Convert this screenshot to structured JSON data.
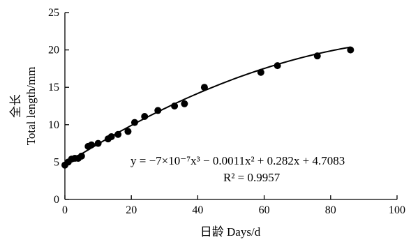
{
  "chart_data": {
    "type": "scatter",
    "xlabel": "日龄 Days/d",
    "ylabel_line1": "全长",
    "ylabel_line2": "Total length/mm",
    "xlim": [
      0,
      100
    ],
    "ylim": [
      0,
      25
    ],
    "x_ticks": [
      0,
      20,
      40,
      60,
      80,
      100
    ],
    "y_ticks": [
      0,
      5,
      10,
      15,
      20,
      25
    ],
    "grid": false,
    "points": [
      {
        "x": 0,
        "y": 4.6
      },
      {
        "x": 1,
        "y": 5.0
      },
      {
        "x": 2,
        "y": 5.4
      },
      {
        "x": 3,
        "y": 5.5
      },
      {
        "x": 4,
        "y": 5.5
      },
      {
        "x": 5,
        "y": 5.8
      },
      {
        "x": 7,
        "y": 7.1
      },
      {
        "x": 8,
        "y": 7.3
      },
      {
        "x": 10,
        "y": 7.5
      },
      {
        "x": 13,
        "y": 8.1
      },
      {
        "x": 14,
        "y": 8.4
      },
      {
        "x": 16,
        "y": 8.7
      },
      {
        "x": 19,
        "y": 9.1
      },
      {
        "x": 21,
        "y": 10.3
      },
      {
        "x": 24,
        "y": 11.1
      },
      {
        "x": 28,
        "y": 11.9
      },
      {
        "x": 33,
        "y": 12.5
      },
      {
        "x": 36,
        "y": 12.8
      },
      {
        "x": 42,
        "y": 15.0
      },
      {
        "x": 59,
        "y": 17.0
      },
      {
        "x": 64,
        "y": 17.9
      },
      {
        "x": 76,
        "y": 19.2
      },
      {
        "x": 86,
        "y": 20.0
      }
    ],
    "fit": {
      "a3": -7e-07,
      "a2": -0.0011,
      "a1": 0.282,
      "a0": 4.7083,
      "x_range": [
        0,
        86
      ]
    },
    "equation_text": "y = −7×10⁻⁷x³ − 0.0011x² + 0.282x + 4.7083",
    "r2_text": "R² = 0.9957"
  }
}
